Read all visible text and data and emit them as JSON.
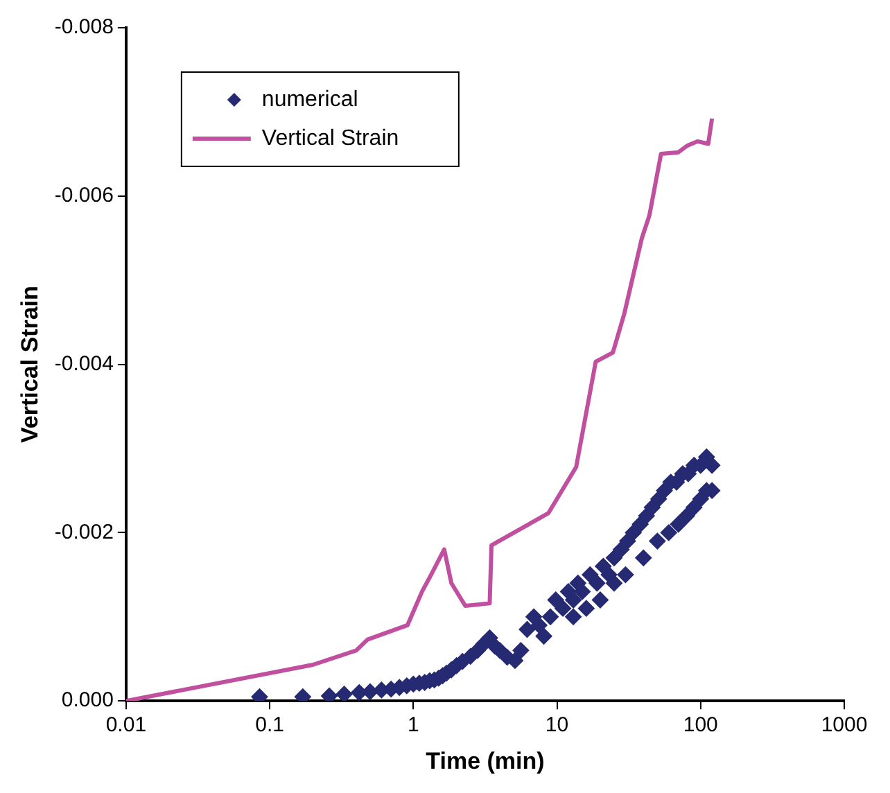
{
  "chart_data": {
    "type": "scatter",
    "xlabel": "Time (min)",
    "ylabel": "Vertical Strain",
    "log": "x",
    "xlim": [
      0.01,
      1000
    ],
    "ylim": [
      0,
      -0.008
    ],
    "xticks": [
      0.01,
      0.1,
      1,
      10,
      100,
      1000
    ],
    "yticks": [
      {
        "value": 0,
        "label": "0.000"
      },
      {
        "value": -0.002,
        "label": "-0.002"
      },
      {
        "value": -0.004,
        "label": "-0.004"
      },
      {
        "value": -0.006,
        "label": "-0.006"
      },
      {
        "value": -0.008,
        "label": "-0.008"
      }
    ],
    "grid": false,
    "legend": "top left",
    "marker": "diamond",
    "series": [
      {
        "name": "numerical",
        "type": "scatter",
        "color": "#262a72",
        "x": [
          0.085,
          0.17,
          0.26,
          0.33,
          0.42,
          0.5,
          0.6,
          0.7,
          0.8,
          0.9,
          1.0,
          1.1,
          1.2,
          1.3,
          1.4,
          1.5,
          1.6,
          1.7,
          1.84,
          2.0,
          2.2,
          2.5,
          2.8,
          3.1,
          3.4,
          3.7,
          4.0,
          4.5,
          5.1,
          5.6,
          6.2,
          6.9,
          7.5,
          8.1,
          9.0,
          9.8,
          11,
          12,
          13,
          14,
          15,
          17,
          19,
          21,
          23,
          25,
          28,
          31,
          34,
          38,
          42,
          46,
          51,
          56,
          62,
          68,
          75,
          82,
          90,
          100,
          110,
          120,
          120,
          110,
          100,
          90,
          80,
          70,
          60,
          50,
          40,
          30,
          25,
          20,
          16,
          13
        ],
        "values": [
          -5e-05,
          -5e-05,
          -6e-05,
          -8e-05,
          -0.0001,
          -0.00011,
          -0.00013,
          -0.00014,
          -0.00016,
          -0.00018,
          -0.0002,
          -0.00021,
          -0.00022,
          -0.00024,
          -0.00025,
          -0.00027,
          -0.0003,
          -0.00033,
          -0.00037,
          -0.00042,
          -0.00047,
          -0.00053,
          -0.0006,
          -0.00068,
          -0.00075,
          -0.00065,
          -0.0006,
          -0.00052,
          -0.00048,
          -0.0006,
          -0.00085,
          -0.001,
          -0.0009,
          -0.00077,
          -0.001,
          -0.0012,
          -0.0011,
          -0.0013,
          -0.0012,
          -0.0014,
          -0.0013,
          -0.0015,
          -0.0014,
          -0.0016,
          -0.0015,
          -0.0017,
          -0.0018,
          -0.0019,
          -0.002,
          -0.0021,
          -0.0022,
          -0.0023,
          -0.0024,
          -0.0025,
          -0.0026,
          -0.0026,
          -0.0027,
          -0.0027,
          -0.0028,
          -0.0028,
          -0.0029,
          -0.0028,
          -0.0025,
          -0.0025,
          -0.0024,
          -0.0023,
          -0.0022,
          -0.0021,
          -0.002,
          -0.0019,
          -0.0017,
          -0.0015,
          -0.0014,
          -0.0012,
          -0.0011,
          -0.001
        ]
      },
      {
        "name": "Vertical Strain",
        "type": "line",
        "color": "#c0509f",
        "marker": "none",
        "x": [
          0.01,
          0.2,
          0.4,
          0.48,
          0.91,
          1.15,
          1.33,
          1.64,
          1.84,
          2.3,
          3.4,
          3.5,
          8.7,
          13.6,
          18.6,
          24.5,
          29.4,
          39,
          44,
          53,
          70,
          81,
          95,
          113,
          120
        ],
        "values": [
          0,
          -0.00043,
          -0.0006,
          -0.00073,
          -0.0009,
          -0.0013,
          -0.0015,
          -0.0018,
          -0.0014,
          -0.00113,
          -0.00116,
          -0.00185,
          -0.00223,
          -0.00278,
          -0.00403,
          -0.00414,
          -0.0046,
          -0.0055,
          -0.00577,
          -0.0065,
          -0.00652,
          -0.0066,
          -0.00665,
          -0.00662,
          -0.00692
        ]
      }
    ]
  }
}
